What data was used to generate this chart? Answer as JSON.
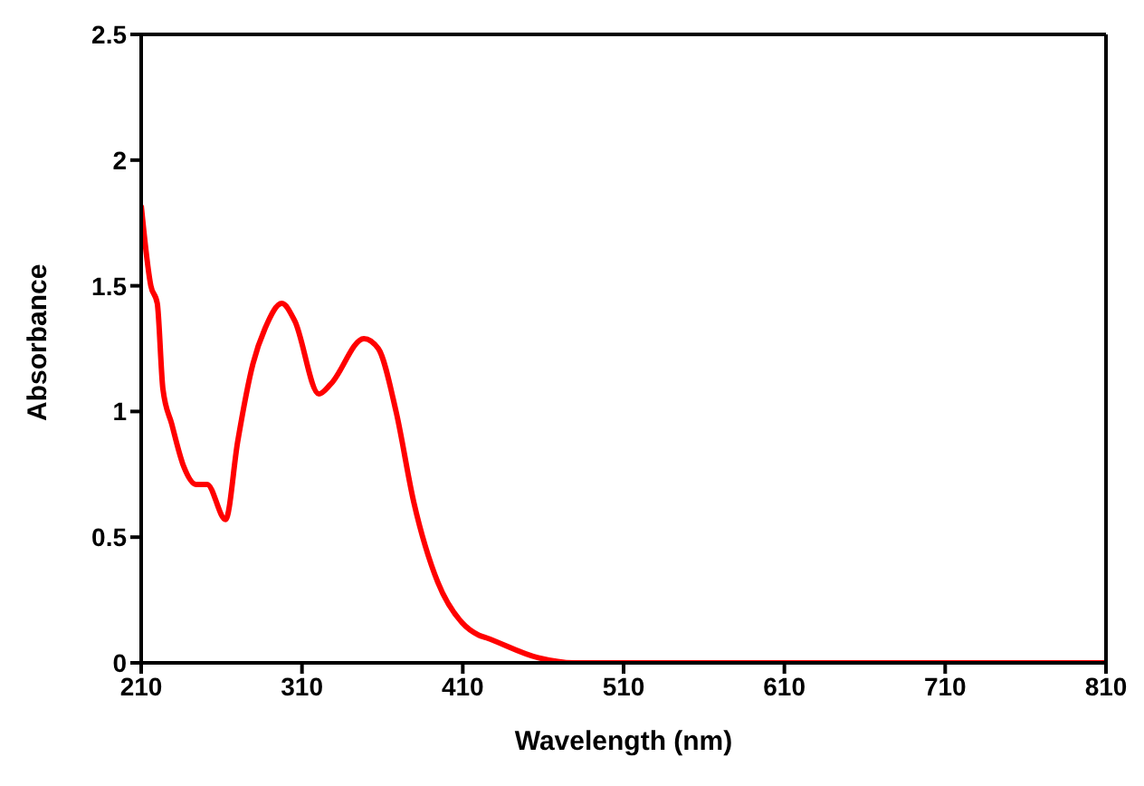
{
  "chart_data": {
    "type": "line",
    "xlabel": "Wavelength (nm)",
    "ylabel": "Absorbance",
    "xlim": [
      210,
      810
    ],
    "xticks": [
      210,
      310,
      410,
      510,
      610,
      710,
      810
    ],
    "ylim": [
      0,
      2.5
    ],
    "yticks": [
      0,
      0.5,
      1,
      1.5,
      2,
      2.5
    ],
    "grid": false,
    "legend": false,
    "marker": "none",
    "line_style": "solid",
    "series": [
      {
        "color": "#ff0000",
        "x": [
          210,
          216,
          220,
          223.5,
          229,
          236.5,
          244,
          251,
          262.5,
          270,
          279.5,
          287,
          297.5,
          305.5,
          320.5,
          328,
          348.5,
          357.5,
          368.5,
          379.5,
          394.5,
          409.5,
          420,
          424.5,
          457,
          479,
          510,
          610,
          710,
          810
        ],
        "values": [
          1.82,
          1.5,
          1.43,
          1.09,
          0.95,
          0.78,
          0.71,
          0.71,
          0.57,
          0.88,
          1.19,
          1.33,
          1.43,
          1.36,
          1.07,
          1.11,
          1.29,
          1.25,
          1.0,
          0.64,
          0.32,
          0.16,
          0.11,
          0.1,
          0.02,
          0,
          0,
          0,
          0,
          0
        ]
      }
    ]
  }
}
